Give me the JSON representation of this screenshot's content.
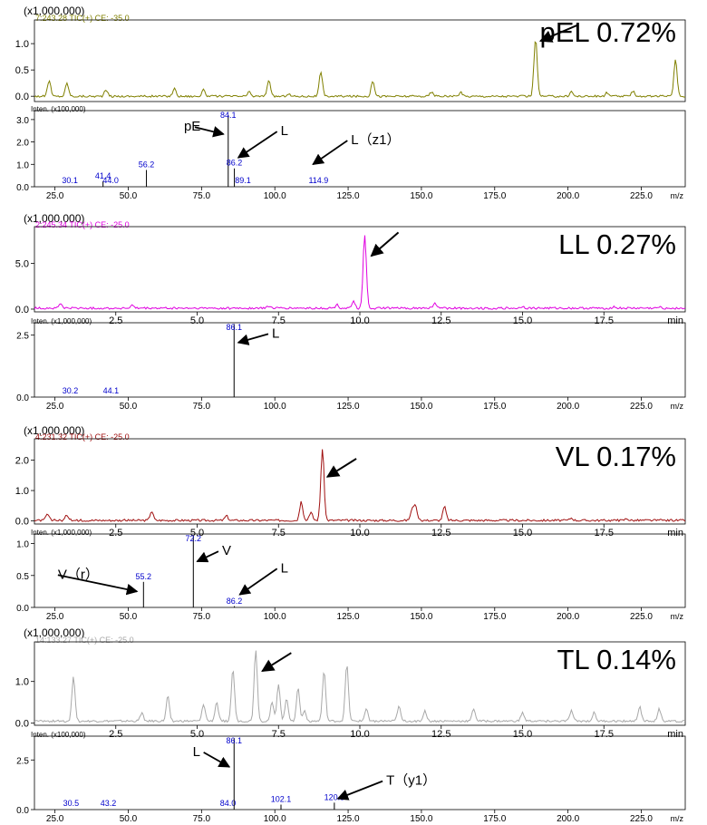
{
  "chart_data": [
    {
      "type": "line",
      "scale_label": "(x1,000,000)",
      "header": "7:243.28 TIC(+) CE: -35.0",
      "color": "#808000",
      "label": "pEL 0.72%",
      "x_unit": "",
      "xlim": [
        0,
        20
      ],
      "ylim": [
        -0.1,
        1.45
      ],
      "y_ticks": [
        {
          "v": 0.0,
          "t": "0.0"
        },
        {
          "v": 0.5,
          "t": "0.5"
        },
        {
          "v": 1.0,
          "t": "1.0"
        }
      ],
      "x_ticks": [],
      "baseline": 0.0,
      "peaks": [
        [
          0.45,
          0.3
        ],
        [
          1.0,
          0.25
        ],
        [
          2.2,
          0.12
        ],
        [
          4.3,
          0.15
        ],
        [
          5.2,
          0.12
        ],
        [
          6.6,
          0.08
        ],
        [
          7.2,
          0.3
        ],
        [
          7.8,
          0.05
        ],
        [
          8.8,
          0.45
        ],
        [
          10.4,
          0.3
        ],
        [
          12.2,
          0.08
        ],
        [
          13.1,
          0.07
        ],
        [
          15.4,
          1.1
        ],
        [
          16.5,
          0.09
        ],
        [
          17.6,
          0.07
        ],
        [
          18.4,
          0.1
        ],
        [
          19.7,
          0.7
        ]
      ],
      "arrows": [
        {
          "tx": 15.55,
          "ty": 1.05,
          "dx": 42,
          "dy": -18
        }
      ],
      "spectrum": {
        "inten_label": "Inten. (x100,000)",
        "x_unit": "m/z",
        "xlim": [
          18,
          240
        ],
        "ylim": [
          0,
          3.4
        ],
        "y_ticks": [
          {
            "v": 0,
            "t": "0.0"
          },
          {
            "v": 1,
            "t": "1.0"
          },
          {
            "v": 2,
            "t": "2.0"
          },
          {
            "v": 3,
            "t": "3.0"
          }
        ],
        "x_ticks": [
          {
            "v": 25,
            "t": "25.0"
          },
          {
            "v": 50,
            "t": "50.0"
          },
          {
            "v": 75,
            "t": "75.0"
          },
          {
            "v": 100,
            "t": "100.0"
          },
          {
            "v": 125,
            "t": "125.0"
          },
          {
            "v": 150,
            "t": "150.0"
          },
          {
            "v": 175,
            "t": "175.0"
          },
          {
            "v": 200,
            "t": "200.0"
          },
          {
            "v": 225,
            "t": "225.0"
          }
        ],
        "peaks": [
          {
            "mz": 30.1,
            "y": 0.02,
            "label": "30.1"
          },
          {
            "mz": 41.4,
            "y": 0.25,
            "label": "41.4"
          },
          {
            "mz": 44.0,
            "y": 0.02,
            "label": "44.0"
          },
          {
            "mz": 56.2,
            "y": 0.75,
            "label": "56.2"
          },
          {
            "mz": 84.1,
            "y": 3.2,
            "label": "84.1"
          },
          {
            "mz": 86.2,
            "y": 0.82,
            "label": "86.2"
          },
          {
            "mz": 89.1,
            "y": 0.02,
            "label": "89.1"
          },
          {
            "mz": 114.9,
            "y": 0.02,
            "label": "114.9"
          }
        ],
        "annotations": [
          {
            "text": "pE",
            "mz": 69,
            "y": 2.5,
            "tx": 82.5,
            "ty": 2.35
          },
          {
            "text": "L",
            "mz": 102,
            "y": 2.3,
            "tx": 87.5,
            "ty": 1.3
          },
          {
            "text": "L（z1）",
            "mz": 126,
            "y": 1.9,
            "tx": 113,
            "ty": 1.0
          }
        ]
      }
    },
    {
      "type": "line",
      "scale_label": "(x1,000,000)",
      "header": "2:245.34 TIC(+) CE: -25.0",
      "color": "#e000e0",
      "label": "LL 0.27%",
      "x_unit": "min",
      "xlim": [
        0,
        20
      ],
      "ylim": [
        -0.3,
        9.0
      ],
      "y_ticks": [
        {
          "v": 0.0,
          "t": "0.0"
        },
        {
          "v": 5.0,
          "t": "5.0"
        }
      ],
      "x_ticks": [
        {
          "v": 2.5,
          "t": "2.5"
        },
        {
          "v": 5.0,
          "t": "5.0"
        },
        {
          "v": 7.5,
          "t": "7.5"
        },
        {
          "v": 10.0,
          "t": "10.0"
        },
        {
          "v": 12.5,
          "t": "12.5"
        },
        {
          "v": 15.0,
          "t": "15.0"
        },
        {
          "v": 17.5,
          "t": "17.5"
        }
      ],
      "x_last_label": "min",
      "baseline": 0.1,
      "peaks": [
        [
          0.8,
          0.5
        ],
        [
          3.0,
          0.3
        ],
        [
          7.2,
          0.25
        ],
        [
          9.3,
          0.35
        ],
        [
          9.8,
          0.8
        ],
        [
          10.15,
          7.9
        ],
        [
          12.3,
          0.6
        ],
        [
          15.0,
          0.2
        ],
        [
          17.8,
          0.15
        ],
        [
          19.2,
          0.1
        ]
      ],
      "arrows": [
        {
          "tx": 10.35,
          "ty": 5.8,
          "dx": 30,
          "dy": -26
        }
      ],
      "spectrum": {
        "inten_label": "Inten. (x1,000,000)",
        "x_unit": "m/z",
        "xlim": [
          18,
          240
        ],
        "ylim": [
          0,
          3.0
        ],
        "y_ticks": [
          {
            "v": 0,
            "t": "0.0"
          },
          {
            "v": 2.5,
            "t": "2.5"
          }
        ],
        "x_ticks": [
          {
            "v": 25,
            "t": "25.0"
          },
          {
            "v": 50,
            "t": "50.0"
          },
          {
            "v": 75,
            "t": "75.0"
          },
          {
            "v": 100,
            "t": "100.0"
          },
          {
            "v": 125,
            "t": "125.0"
          },
          {
            "v": 150,
            "t": "150.0"
          },
          {
            "v": 175,
            "t": "175.0"
          },
          {
            "v": 200,
            "t": "200.0"
          },
          {
            "v": 225,
            "t": "225.0"
          }
        ],
        "peaks": [
          {
            "mz": 30.2,
            "y": 0.02,
            "label": "30.2"
          },
          {
            "mz": 44.1,
            "y": 0.02,
            "label": "44.1"
          },
          {
            "mz": 86.1,
            "y": 2.95,
            "label": "86.1"
          }
        ],
        "annotations": [
          {
            "text": "L",
            "mz": 99,
            "y": 2.4,
            "tx": 87.5,
            "ty": 2.2
          }
        ]
      }
    },
    {
      "type": "line",
      "scale_label": "(x1,000,000)",
      "header": "4:231.32 TIC(+) CE: -25.0",
      "color": "#a01010",
      "label": "VL 0.17%",
      "x_unit": "min",
      "xlim": [
        0,
        20
      ],
      "ylim": [
        -0.1,
        2.7
      ],
      "y_ticks": [
        {
          "v": 0.0,
          "t": "0.0"
        },
        {
          "v": 1.0,
          "t": "1.0"
        },
        {
          "v": 2.0,
          "t": "2.0"
        }
      ],
      "x_ticks": [
        {
          "v": 2.5,
          "t": "2.5"
        },
        {
          "v": 5.0,
          "t": "5.0"
        },
        {
          "v": 7.5,
          "t": "7.5"
        },
        {
          "v": 10.0,
          "t": "10.0"
        },
        {
          "v": 12.5,
          "t": "12.5"
        },
        {
          "v": 15.0,
          "t": "15.0"
        },
        {
          "v": 17.5,
          "t": "17.5"
        }
      ],
      "x_last_label": "min",
      "baseline": 0.02,
      "peaks": [
        [
          0.4,
          0.2
        ],
        [
          1.0,
          0.18
        ],
        [
          3.6,
          0.3
        ],
        [
          5.9,
          0.15
        ],
        [
          8.2,
          0.6
        ],
        [
          8.5,
          0.25
        ],
        [
          8.85,
          2.35
        ],
        [
          11.6,
          0.3
        ],
        [
          11.7,
          0.5
        ],
        [
          12.6,
          0.45
        ],
        [
          16.5,
          0.08
        ],
        [
          18.2,
          0.06
        ]
      ],
      "arrows": [
        {
          "tx": 9.0,
          "ty": 1.45,
          "dx": 32,
          "dy": -20
        }
      ],
      "spectrum": {
        "inten_label": "Inten. (x1,000,000)",
        "x_unit": "m/z",
        "xlim": [
          18,
          240
        ],
        "ylim": [
          0,
          1.15
        ],
        "y_ticks": [
          {
            "v": 0,
            "t": "0.0"
          },
          {
            "v": 0.5,
            "t": "0.5"
          },
          {
            "v": 1.0,
            "t": "1.0"
          }
        ],
        "x_ticks": [
          {
            "v": 25,
            "t": "25.0"
          },
          {
            "v": 50,
            "t": "50.0"
          },
          {
            "v": 75,
            "t": "75.0"
          },
          {
            "v": 100,
            "t": "100.0"
          },
          {
            "v": 125,
            "t": "125.0"
          },
          {
            "v": 150,
            "t": "150.0"
          },
          {
            "v": 175,
            "t": "175.0"
          },
          {
            "v": 200,
            "t": "200.0"
          },
          {
            "v": 225,
            "t": "225.0"
          }
        ],
        "peaks": [
          {
            "mz": 55.2,
            "y": 0.4,
            "label": "55.2"
          },
          {
            "mz": 72.2,
            "y": 1.12,
            "label": "72.2"
          },
          {
            "mz": 86.2,
            "y": 0.02,
            "label": "86.2"
          }
        ],
        "annotations": [
          {
            "text": "V（r）",
            "mz": 26,
            "y": 0.45,
            "tx": 53,
            "ty": 0.25
          },
          {
            "text": "V",
            "mz": 82,
            "y": 0.82,
            "tx": 73.5,
            "ty": 0.72
          },
          {
            "text": "L",
            "mz": 102,
            "y": 0.55,
            "tx": 88,
            "ty": 0.2
          }
        ]
      }
    },
    {
      "type": "line",
      "scale_label": "(x1,000,000)",
      "header": "14:133.27 TIC(+) CE: -25.0",
      "color": "#a8a8a8",
      "label": "TL 0.14%",
      "x_unit": "min",
      "xlim": [
        0,
        20
      ],
      "ylim": [
        -0.05,
        1.95
      ],
      "y_ticks": [
        {
          "v": 0.0,
          "t": "0.0"
        },
        {
          "v": 1.0,
          "t": "1.0"
        }
      ],
      "x_ticks": [
        {
          "v": 2.5,
          "t": "2.5"
        },
        {
          "v": 5.0,
          "t": "5.0"
        },
        {
          "v": 7.5,
          "t": "7.5"
        },
        {
          "v": 10.0,
          "t": "10.0"
        },
        {
          "v": 12.5,
          "t": "12.5"
        },
        {
          "v": 15.0,
          "t": "15.0"
        },
        {
          "v": 17.5,
          "t": "17.5"
        }
      ],
      "x_last_label": "min",
      "baseline": 0.05,
      "peaks": [
        [
          1.2,
          1.05
        ],
        [
          3.3,
          0.2
        ],
        [
          4.1,
          0.6
        ],
        [
          5.2,
          0.4
        ],
        [
          5.6,
          0.45
        ],
        [
          6.1,
          1.25
        ],
        [
          6.8,
          1.7
        ],
        [
          7.3,
          0.45
        ],
        [
          7.5,
          0.9
        ],
        [
          7.75,
          0.55
        ],
        [
          8.1,
          0.8
        ],
        [
          8.3,
          0.25
        ],
        [
          8.9,
          1.2
        ],
        [
          9.6,
          1.35
        ],
        [
          10.2,
          0.3
        ],
        [
          11.2,
          0.35
        ],
        [
          12.0,
          0.25
        ],
        [
          13.5,
          0.3
        ],
        [
          15.0,
          0.2
        ],
        [
          16.5,
          0.25
        ],
        [
          17.2,
          0.2
        ],
        [
          18.6,
          0.35
        ],
        [
          19.2,
          0.3
        ]
      ],
      "arrows": [
        {
          "tx": 7.0,
          "ty": 1.25,
          "dx": 32,
          "dy": -20
        }
      ],
      "spectrum": {
        "inten_label": "Inten. (x100,000)",
        "x_unit": "m/z",
        "xlim": [
          18,
          240
        ],
        "ylim": [
          0,
          3.7
        ],
        "y_ticks": [
          {
            "v": 0,
            "t": "0.0"
          },
          {
            "v": 2.5,
            "t": "2.5"
          }
        ],
        "x_ticks": [
          {
            "v": 25,
            "t": "25.0"
          },
          {
            "v": 50,
            "t": "50.0"
          },
          {
            "v": 75,
            "t": "75.0"
          },
          {
            "v": 100,
            "t": "100.0"
          },
          {
            "v": 125,
            "t": "125.0"
          },
          {
            "v": 150,
            "t": "150.0"
          },
          {
            "v": 175,
            "t": "175.0"
          },
          {
            "v": 200,
            "t": "200.0"
          },
          {
            "v": 225,
            "t": "225.0"
          }
        ],
        "peaks": [
          {
            "mz": 30.5,
            "y": 0.02,
            "label": "30.5"
          },
          {
            "mz": 43.2,
            "y": 0.02,
            "label": "43.2"
          },
          {
            "mz": 84.0,
            "y": 0.02,
            "label": "84.0"
          },
          {
            "mz": 86.1,
            "y": 3.6,
            "label": "86.1"
          },
          {
            "mz": 102.1,
            "y": 0.25,
            "label": "102.1"
          },
          {
            "mz": 120.3,
            "y": 0.35,
            "label": "120.3"
          }
        ],
        "annotations": [
          {
            "text": "L",
            "mz": 72,
            "y": 2.7,
            "tx": 84.5,
            "ty": 2.15
          },
          {
            "text": "T（y1）",
            "mz": 138,
            "y": 1.25,
            "tx": 121.5,
            "ty": 0.55
          }
        ]
      }
    }
  ]
}
